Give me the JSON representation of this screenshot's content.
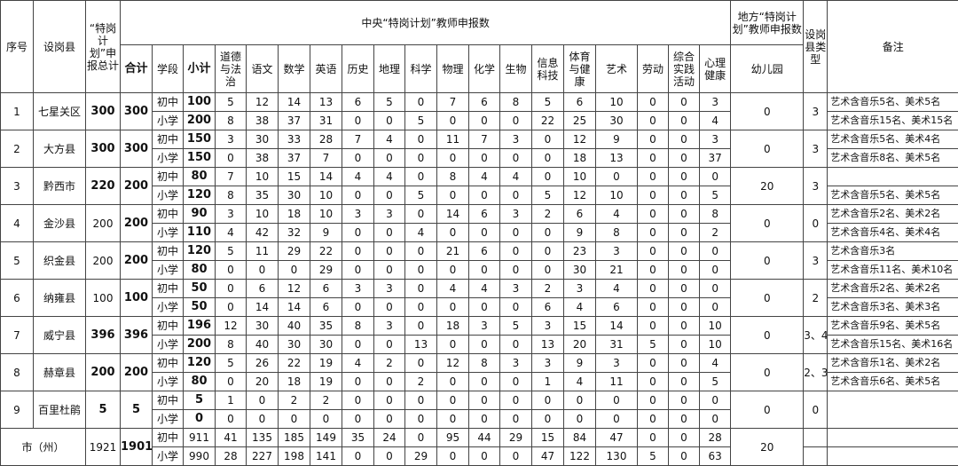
{
  "header": {
    "no": "序号",
    "county": "设岗县",
    "total": "“特岗计划”申报总计",
    "central_title": "中央“特岗计划”教师申报数",
    "local_title": "地方“特岗计划”教师申报数",
    "type": "设岗县类型",
    "note": "备注",
    "sum": "合计",
    "stage": "学段",
    "subtotal": "小计",
    "subjects": [
      "道德与法治",
      "语文",
      "数学",
      "英语",
      "历史",
      "地理",
      "科学",
      "物理",
      "化学",
      "生物",
      "信息科技",
      "体育与健康",
      "艺术",
      "劳动",
      "综合实践活动",
      "心理健康"
    ],
    "kindergarten": "幼儿园"
  },
  "rows": [
    {
      "no": "1",
      "county": "七星关区",
      "total": "300",
      "sum": "300",
      "kindergarten": "0",
      "type": "3",
      "stages": [
        {
          "stage": "初中",
          "subtotal": "100",
          "values": [
            "5",
            "12",
            "14",
            "13",
            "6",
            "5",
            "0",
            "7",
            "6",
            "8",
            "5",
            "6",
            "10",
            "0",
            "0",
            "3"
          ],
          "note": "艺术含音乐5名、美术5名"
        },
        {
          "stage": "小学",
          "subtotal": "200",
          "values": [
            "8",
            "38",
            "37",
            "31",
            "0",
            "0",
            "5",
            "0",
            "0",
            "0",
            "22",
            "25",
            "30",
            "0",
            "0",
            "4"
          ],
          "note": "艺术含音乐15名、美术15名"
        }
      ]
    },
    {
      "no": "2",
      "county": "大方县",
      "total": "300",
      "sum": "300",
      "kindergarten": "0",
      "type": "3",
      "stages": [
        {
          "stage": "初中",
          "subtotal": "150",
          "values": [
            "3",
            "30",
            "33",
            "28",
            "7",
            "4",
            "0",
            "11",
            "7",
            "3",
            "0",
            "12",
            "9",
            "0",
            "0",
            "3"
          ],
          "note": "艺术含音乐5名、美术4名"
        },
        {
          "stage": "小学",
          "subtotal": "150",
          "values": [
            "0",
            "38",
            "37",
            "7",
            "0",
            "0",
            "0",
            "0",
            "0",
            "0",
            "0",
            "18",
            "13",
            "0",
            "0",
            "37"
          ],
          "note": "艺术含音乐8名、美术5名"
        }
      ]
    },
    {
      "no": "3",
      "county": "黔西市",
      "total": "220",
      "sum": "200",
      "kindergarten": "20",
      "type": "3",
      "stages": [
        {
          "stage": "初中",
          "subtotal": "80",
          "values": [
            "7",
            "10",
            "15",
            "14",
            "4",
            "4",
            "0",
            "8",
            "4",
            "4",
            "0",
            "10",
            "0",
            "0",
            "0",
            "0"
          ],
          "note": ""
        },
        {
          "stage": "小学",
          "subtotal": "120",
          "values": [
            "8",
            "35",
            "30",
            "10",
            "0",
            "0",
            "5",
            "0",
            "0",
            "0",
            "5",
            "12",
            "10",
            "0",
            "0",
            "5"
          ],
          "note": "艺术含音乐5名、美术5名"
        }
      ]
    },
    {
      "no": "4",
      "county": "金沙县",
      "total": "200",
      "sum": "200",
      "kindergarten": "0",
      "type": "0",
      "stages": [
        {
          "stage": "初中",
          "subtotal": "90",
          "values": [
            "3",
            "10",
            "18",
            "10",
            "3",
            "3",
            "0",
            "14",
            "6",
            "3",
            "2",
            "6",
            "4",
            "0",
            "0",
            "8"
          ],
          "note": "艺术含音乐2名、美术2名"
        },
        {
          "stage": "小学",
          "subtotal": "110",
          "values": [
            "4",
            "42",
            "32",
            "9",
            "0",
            "0",
            "4",
            "0",
            "0",
            "0",
            "0",
            "9",
            "8",
            "0",
            "0",
            "2"
          ],
          "note": "艺术含音乐4名、美术4名"
        }
      ]
    },
    {
      "no": "5",
      "county": "织金县",
      "total": "200",
      "sum": "200",
      "kindergarten": "0",
      "type": "3",
      "stages": [
        {
          "stage": "初中",
          "subtotal": "120",
          "values": [
            "5",
            "11",
            "29",
            "22",
            "0",
            "0",
            "0",
            "21",
            "6",
            "0",
            "0",
            "23",
            "3",
            "0",
            "0",
            "0"
          ],
          "note": "艺术含音乐3名"
        },
        {
          "stage": "小学",
          "subtotal": "80",
          "values": [
            "0",
            "0",
            "0",
            "29",
            "0",
            "0",
            "0",
            "0",
            "0",
            "0",
            "0",
            "30",
            "21",
            "0",
            "0",
            "0"
          ],
          "note": "艺术含音乐11名、美术10名"
        }
      ]
    },
    {
      "no": "6",
      "county": "纳雍县",
      "total": "100",
      "sum": "100",
      "kindergarten": "0",
      "type": "2",
      "stages": [
        {
          "stage": "初中",
          "subtotal": "50",
          "values": [
            "0",
            "6",
            "12",
            "6",
            "3",
            "3",
            "0",
            "4",
            "4",
            "3",
            "2",
            "3",
            "4",
            "0",
            "0",
            "0"
          ],
          "note": "艺术含音乐2名、美术2名"
        },
        {
          "stage": "小学",
          "subtotal": "50",
          "values": [
            "0",
            "14",
            "14",
            "6",
            "0",
            "0",
            "0",
            "0",
            "0",
            "0",
            "6",
            "4",
            "6",
            "0",
            "0",
            "0"
          ],
          "note": "艺术含音乐3名、美术3名"
        }
      ]
    },
    {
      "no": "7",
      "county": "威宁县",
      "total": "396",
      "sum": "396",
      "kindergarten": "0",
      "type": "3、4",
      "stages": [
        {
          "stage": "初中",
          "subtotal": "196",
          "values": [
            "12",
            "30",
            "40",
            "35",
            "8",
            "3",
            "0",
            "18",
            "3",
            "5",
            "3",
            "15",
            "14",
            "0",
            "0",
            "10"
          ],
          "note": "艺术含音乐9名、美术5名"
        },
        {
          "stage": "小学",
          "subtotal": "200",
          "values": [
            "8",
            "40",
            "30",
            "30",
            "0",
            "0",
            "13",
            "0",
            "0",
            "0",
            "13",
            "20",
            "31",
            "5",
            "0",
            "10"
          ],
          "note": "艺术含音乐15名、美术16名"
        }
      ]
    },
    {
      "no": "8",
      "county": "赫章县",
      "total": "200",
      "sum": "200",
      "kindergarten": "0",
      "type": "2、3",
      "stages": [
        {
          "stage": "初中",
          "subtotal": "120",
          "values": [
            "5",
            "26",
            "22",
            "19",
            "4",
            "2",
            "0",
            "12",
            "8",
            "3",
            "3",
            "9",
            "3",
            "0",
            "0",
            "4"
          ],
          "note": "艺术含音乐1名、美术2名"
        },
        {
          "stage": "小学",
          "subtotal": "80",
          "values": [
            "0",
            "20",
            "18",
            "19",
            "0",
            "0",
            "2",
            "0",
            "0",
            "0",
            "1",
            "4",
            "11",
            "0",
            "0",
            "5"
          ],
          "note": "艺术含音乐6名、美术5名"
        }
      ]
    },
    {
      "no": "9",
      "county": "百里杜鹃",
      "total": "5",
      "sum": "5",
      "kindergarten": "0",
      "type": "0",
      "stages": [
        {
          "stage": "初中",
          "subtotal": "5",
          "values": [
            "1",
            "0",
            "2",
            "2",
            "0",
            "0",
            "0",
            "0",
            "0",
            "0",
            "0",
            "0",
            "0",
            "0",
            "0",
            "0"
          ],
          "note": ""
        },
        {
          "stage": "小学",
          "subtotal": "0",
          "values": [
            "0",
            "0",
            "0",
            "0",
            "0",
            "0",
            "0",
            "0",
            "0",
            "0",
            "0",
            "0",
            "0",
            "0",
            "0",
            "0"
          ],
          "note": ""
        }
      ]
    }
  ],
  "city": {
    "label": "市（州）",
    "total": "1921",
    "sum": "1901",
    "kindergarten": "20",
    "stages": [
      {
        "stage": "初中",
        "subtotal": "911",
        "values": [
          "41",
          "135",
          "185",
          "149",
          "35",
          "24",
          "0",
          "95",
          "44",
          "29",
          "15",
          "84",
          "47",
          "0",
          "0",
          "28"
        ]
      },
      {
        "stage": "小学",
        "subtotal": "990",
        "values": [
          "28",
          "227",
          "198",
          "141",
          "0",
          "0",
          "29",
          "0",
          "0",
          "0",
          "47",
          "122",
          "130",
          "5",
          "0",
          "63"
        ]
      }
    ]
  }
}
